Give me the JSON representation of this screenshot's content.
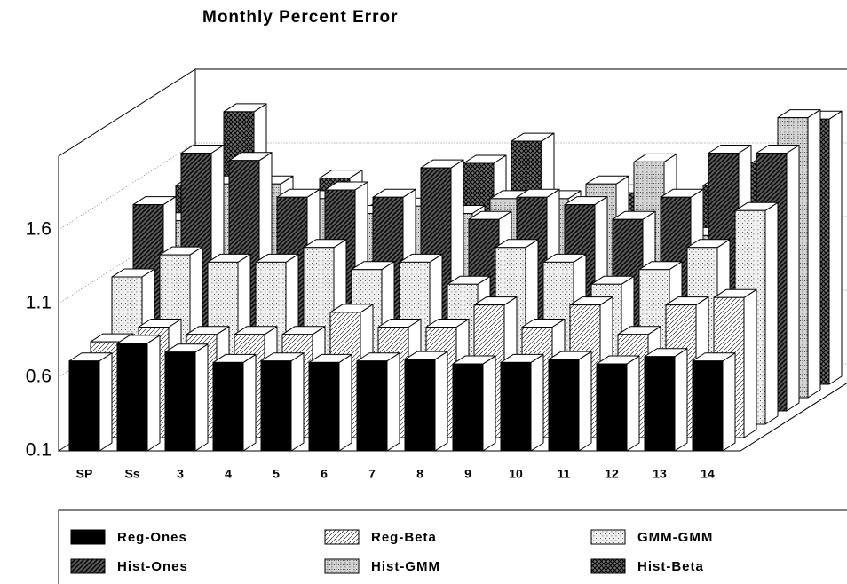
{
  "chart_data": {
    "type": "bar3d",
    "title": "Monthly Percent Error",
    "categories": [
      "SP",
      "Ss",
      "3",
      "4",
      "5",
      "6",
      "7",
      "8",
      "9",
      "10",
      "11",
      "12",
      "13",
      "14"
    ],
    "series": [
      {
        "name": "Reg-Ones",
        "color": "#000000",
        "values": [
          0.71,
          0.83,
          0.77,
          0.7,
          0.71,
          0.7,
          0.71,
          0.72,
          0.69,
          0.7,
          0.72,
          0.69,
          0.74,
          0.71
        ]
      },
      {
        "name": "Reg-Beta",
        "color": "#ffffff",
        "values": [
          0.75,
          0.85,
          0.8,
          0.8,
          0.8,
          0.95,
          0.85,
          0.85,
          1.0,
          0.85,
          1.0,
          0.8,
          1.0,
          1.05
        ]
      },
      {
        "name": "GMM-GMM",
        "color": "#f0f0f0",
        "values": [
          1.1,
          1.25,
          1.2,
          1.2,
          1.3,
          1.15,
          1.2,
          1.05,
          1.3,
          1.2,
          1.05,
          1.15,
          1.3,
          1.55
        ]
      },
      {
        "name": "Hist-Ones",
        "color": "#5a5a5a",
        "values": [
          1.5,
          1.85,
          1.8,
          1.55,
          1.6,
          1.55,
          1.75,
          1.4,
          1.55,
          1.5,
          1.4,
          1.55,
          1.85,
          1.85
        ]
      },
      {
        "name": "Hist-GMM",
        "color": "#d4d4d4",
        "values": [
          1.3,
          1.55,
          1.55,
          1.45,
          1.35,
          1.4,
          1.35,
          1.45,
          1.45,
          1.55,
          1.7,
          1.2,
          1.3,
          2.0
        ]
      },
      {
        "name": "Hist-Beta",
        "color": "#707070",
        "values": [
          1.45,
          1.95,
          1.3,
          1.5,
          1.3,
          1.3,
          1.6,
          1.75,
          1.3,
          1.4,
          1.35,
          1.45,
          1.6,
          1.9
        ]
      }
    ],
    "ylim": [
      0.1,
      2.1
    ],
    "yticks": [
      0.1,
      0.6,
      1.1,
      1.6
    ],
    "grid": true
  }
}
